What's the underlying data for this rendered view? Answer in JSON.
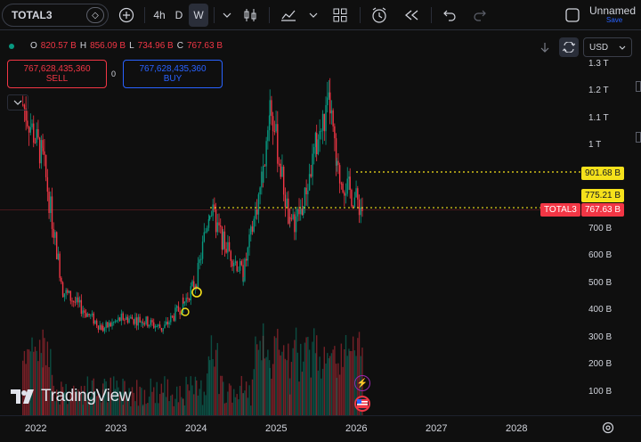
{
  "toolbar": {
    "symbol": "TOTAL3",
    "interval_4h": "4h",
    "interval_d": "D",
    "interval_w": "W",
    "layout_name": "Unnamed",
    "save_label": "Save"
  },
  "legend": {
    "o_key": "O",
    "o_val": "820.57 B",
    "h_key": "H",
    "h_val": "856.09 B",
    "l_key": "L",
    "l_val": "734.96 B",
    "c_key": "C",
    "c_val": "767.63 B"
  },
  "trade": {
    "sell_value": "767,628,435,360",
    "sell_label": "SELL",
    "spread": "0",
    "buy_value": "767,628,435,360",
    "buy_label": "BUY"
  },
  "currency": "USD",
  "price_axis": [
    "1.3 T",
    "1.2 T",
    "1.1 T",
    "1 T",
    "700 B",
    "600 B",
    "500 B",
    "400 B",
    "300 B",
    "200 B",
    "100 B"
  ],
  "price_tags": {
    "level_high": "901.68 B",
    "level_mid": "775.21 B",
    "symbol_tag": "TOTAL3",
    "last_price": "767.63 B"
  },
  "time_axis": [
    "2022",
    "2023",
    "2024",
    "2025",
    "2026",
    "2027",
    "2028"
  ],
  "watermark": "TradingView",
  "colors": {
    "up": "#089981",
    "down": "#f23645",
    "accent": "#2962ff",
    "level": "#f5e11b"
  },
  "chart_data": {
    "type": "candlestick",
    "title": "TOTAL3",
    "interval": "W",
    "x": [
      "2021-11",
      "2022-02",
      "2022-05",
      "2022-08",
      "2022-11",
      "2023-02",
      "2023-05",
      "2023-08",
      "2023-11",
      "2024-01",
      "2024-03",
      "2024-05",
      "2024-08",
      "2024-11",
      "2024-12",
      "2025-03",
      "2025-05",
      "2025-07",
      "2025-09",
      "2025-10",
      "2025-12",
      "2026-01"
    ],
    "close": [
      1150,
      950,
      470,
      400,
      330,
      370,
      360,
      330,
      420,
      510,
      775,
      650,
      530,
      900,
      1160,
      700,
      780,
      1010,
      1150,
      900,
      830,
      767.63
    ],
    "levels": [
      901.68,
      775.21
    ],
    "last": 767.63,
    "ylim": [
      0,
      1300
    ]
  }
}
